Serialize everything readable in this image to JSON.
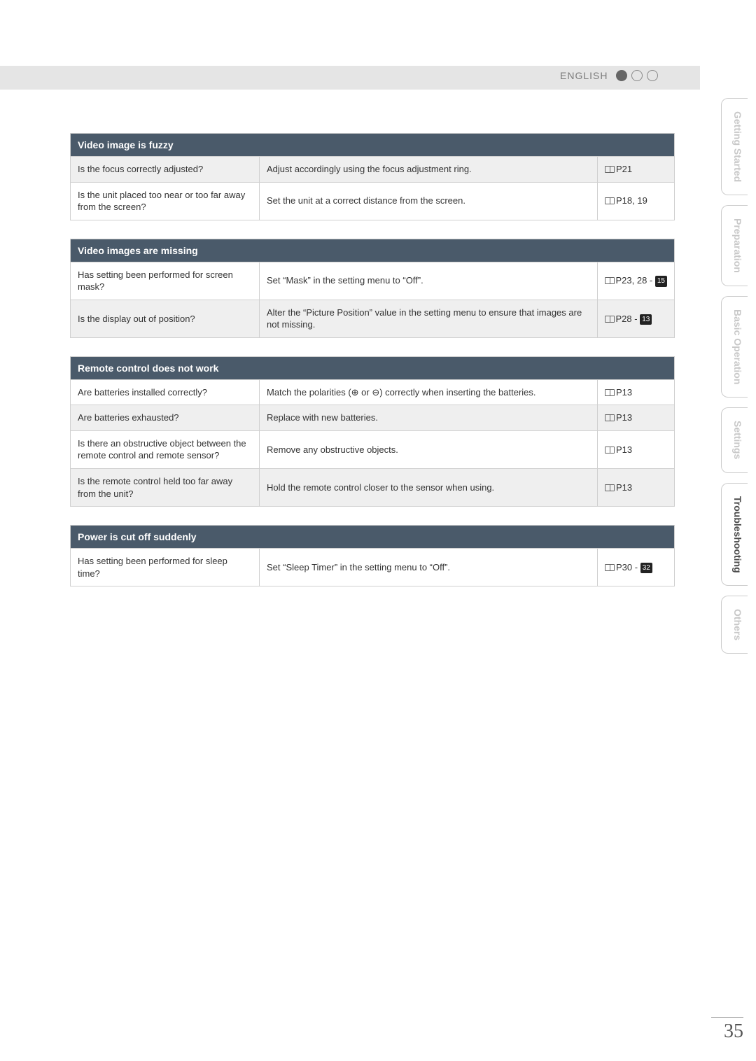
{
  "header": {
    "language": "ENGLISH"
  },
  "tabs": [
    {
      "label": "Getting Started",
      "active": false
    },
    {
      "label": "Preparation",
      "active": false
    },
    {
      "label": "Basic Operation",
      "active": false
    },
    {
      "label": "Settings",
      "active": false
    },
    {
      "label": "Troubleshooting",
      "active": true
    },
    {
      "label": "Others",
      "active": false
    }
  ],
  "tables": [
    {
      "title": "Video image is fuzzy",
      "rows": [
        {
          "q": "Is the focus correctly adjusted?",
          "a": "Adjust accordingly using the focus adjustment ring.",
          "ref": "P21",
          "box": "",
          "shade": true
        },
        {
          "q": "Is the unit placed too near or too far away from the screen?",
          "a": "Set the unit at a correct distance from the screen.",
          "ref": "P18, 19",
          "box": "",
          "shade": false
        }
      ]
    },
    {
      "title": "Video images are missing",
      "rows": [
        {
          "q": "Has setting been performed for screen mask?",
          "a": "Set “Mask” in the setting menu to “Off”.",
          "ref": "P23, 28 - ",
          "box": "15",
          "shade": false
        },
        {
          "q": "Is the display out of position?",
          "a": "Alter the “Picture Position” value in the setting menu to ensure that images are not missing.",
          "ref": "P28 - ",
          "box": "13",
          "shade": true
        }
      ]
    },
    {
      "title": "Remote control does not work",
      "rows": [
        {
          "q": "Are batteries installed correctly?",
          "a": "Match the polarities (⊕ or ⊖) correctly when inserting the batteries.",
          "ref": "P13",
          "box": "",
          "shade": false
        },
        {
          "q": "Are batteries exhausted?",
          "a": "Replace with new batteries.",
          "ref": "P13",
          "box": "",
          "shade": true
        },
        {
          "q": "Is there an obstructive object between the remote control and remote sensor?",
          "a": "Remove any obstructive objects.",
          "ref": "P13",
          "box": "",
          "shade": false
        },
        {
          "q": "Is the remote control held too far away from the unit?",
          "a": "Hold the remote control closer to the sensor when using.",
          "ref": "P13",
          "box": "",
          "shade": true
        }
      ]
    },
    {
      "title": "Power is cut off suddenly",
      "rows": [
        {
          "q": "Has setting been performed for sleep time?",
          "a": "Set “Sleep Timer” in the setting menu to “Off”.",
          "ref": "P30 - ",
          "box": "32",
          "shade": false
        }
      ]
    }
  ],
  "pageNumber": "35"
}
